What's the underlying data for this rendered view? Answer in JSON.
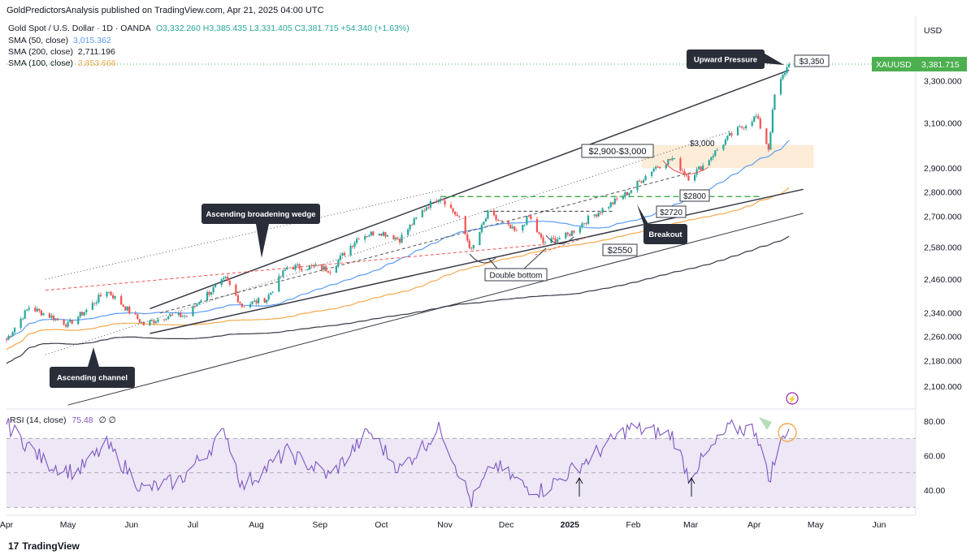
{
  "header": {
    "published": "GoldPredictorsAnalysis published on TradingView.com, Apr 21, 2025 04:00 UTC"
  },
  "legend": {
    "symbol_line": "Gold Spot / U.S. Dollar · 1D · OANDA",
    "ohlc": "O3,332.260 H3,385.435 L3,331.405 C3,381.715 +54.340 (+1.63%)",
    "sma50_label": "SMA (50, close)",
    "sma50_value": "3,015.362",
    "sma200_label": "SMA (200, close)",
    "sma200_value": "2,711.196",
    "sma100_label": "SMA (100, close)",
    "sma100_value": "2,853.666"
  },
  "price_axis": {
    "currency": "USD",
    "ticker_tag": "XAUUSD",
    "last_price": "3,381.715"
  },
  "rsi": {
    "label": "RSI (14, close)",
    "value": "75.48",
    "extra": "∅ ∅"
  },
  "footer": {
    "brand": "TradingView"
  },
  "colors": {
    "up": "#26a69a",
    "down": "#ef5350",
    "sma50": "#5b9cf6",
    "sma100": "#f6a94c",
    "sma200": "#363a45",
    "rsi_line": "#7e57c2",
    "rsi_band": "#ede7f6",
    "green_tag": "#4caf50",
    "zone": "#fbe4c8",
    "callout": "#2a2e39",
    "dashed_green": "#4caf50"
  },
  "chart_data": {
    "type": "candlestick",
    "title": "Gold Spot / U.S. Dollar · 1D · OANDA",
    "x_tick_labels": [
      "Apr",
      "May",
      "Jun",
      "Jul",
      "Aug",
      "Sep",
      "Oct",
      "Nov",
      "Dec",
      "2025",
      "Feb",
      "Mar",
      "Apr",
      "May",
      "Jun"
    ],
    "y_tick_labels": [
      "3,300.000",
      "3,100.000",
      "2,900.000",
      "2,800.000",
      "2,700.000",
      "2,580.000",
      "2,460.000",
      "2,340.000",
      "2,260.000",
      "2,180.000",
      "2,100.000"
    ],
    "y_ticks": [
      3300,
      3100,
      2900,
      2800,
      2700,
      2580,
      2460,
      2340,
      2260,
      2180,
      2100
    ],
    "ylim": [
      2040,
      3460
    ],
    "scale": "log",
    "close_path": [
      [
        "2024-04-01",
        2250
      ],
      [
        "2024-04-12",
        2360
      ],
      [
        "2024-04-22",
        2330
      ],
      [
        "2024-05-01",
        2300
      ],
      [
        "2024-05-10",
        2350
      ],
      [
        "2024-05-20",
        2420
      ],
      [
        "2024-05-31",
        2345
      ],
      [
        "2024-06-07",
        2300
      ],
      [
        "2024-06-18",
        2330
      ],
      [
        "2024-06-28",
        2330
      ],
      [
        "2024-07-05",
        2390
      ],
      [
        "2024-07-17",
        2460
      ],
      [
        "2024-07-25",
        2365
      ],
      [
        "2024-08-06",
        2390
      ],
      [
        "2024-08-16",
        2505
      ],
      [
        "2024-08-30",
        2505
      ],
      [
        "2024-09-06",
        2495
      ],
      [
        "2024-09-20",
        2620
      ],
      [
        "2024-09-30",
        2640
      ],
      [
        "2024-10-10",
        2610
      ],
      [
        "2024-10-23",
        2740
      ],
      [
        "2024-10-30",
        2780
      ],
      [
        "2024-11-08",
        2690
      ],
      [
        "2024-11-14",
        2565
      ],
      [
        "2024-11-22",
        2710
      ],
      [
        "2024-12-06",
        2635
      ],
      [
        "2024-12-12",
        2700
      ],
      [
        "2024-12-19",
        2595
      ],
      [
        "2024-12-31",
        2625
      ],
      [
        "2025-01-10",
        2690
      ],
      [
        "2025-01-22",
        2755
      ],
      [
        "2025-01-30",
        2800
      ],
      [
        "2025-02-11",
        2900
      ],
      [
        "2025-02-20",
        2940
      ],
      [
        "2025-02-28",
        2860
      ],
      [
        "2025-03-07",
        2910
      ],
      [
        "2025-03-20",
        3040
      ],
      [
        "2025-04-02",
        3130
      ],
      [
        "2025-04-08",
        2985
      ],
      [
        "2025-04-11",
        3230
      ],
      [
        "2025-04-16",
        3345
      ],
      [
        "2025-04-18",
        3381.715
      ]
    ],
    "sma": [
      {
        "name": "SMA (50, close)",
        "value": 3015.362
      },
      {
        "name": "SMA (200, close)",
        "value": 2711.196
      },
      {
        "name": "SMA (100, close)",
        "value": 2853.666
      }
    ],
    "rsi": {
      "label": "RSI (14, close)",
      "value": 75.48,
      "levels": [
        70,
        50,
        30
      ],
      "y_tick_labels": [
        "80.00",
        "60.00",
        "40.00"
      ],
      "path": [
        [
          "2024-04-01",
          78
        ],
        [
          "2024-04-20",
          56
        ],
        [
          "2024-05-05",
          50
        ],
        [
          "2024-05-20",
          66
        ],
        [
          "2024-06-07",
          40
        ],
        [
          "2024-06-25",
          46
        ],
        [
          "2024-07-17",
          74
        ],
        [
          "2024-07-25",
          42
        ],
        [
          "2024-08-16",
          62
        ],
        [
          "2024-09-06",
          48
        ],
        [
          "2024-09-25",
          74
        ],
        [
          "2024-10-10",
          52
        ],
        [
          "2024-10-30",
          76
        ],
        [
          "2024-11-14",
          33
        ],
        [
          "2024-11-25",
          55
        ],
        [
          "2024-12-10",
          42
        ],
        [
          "2024-12-19",
          40
        ],
        [
          "2025-01-10",
          58
        ],
        [
          "2025-01-30",
          76
        ],
        [
          "2025-02-20",
          72
        ],
        [
          "2025-02-28",
          48
        ],
        [
          "2025-03-20",
          76
        ],
        [
          "2025-04-02",
          75
        ],
        [
          "2025-04-08",
          46
        ],
        [
          "2025-04-16",
          74
        ],
        [
          "2025-04-18",
          75.48
        ]
      ]
    },
    "annotations": [
      "Upward Pressure",
      "$3,350",
      "$2,900-$3,000",
      "$3,000",
      "$2800",
      "$2720",
      "Breakout",
      "$2550",
      "Ascending broadening wedge",
      "Double bottom",
      "Ascending channel"
    ],
    "grid": false,
    "legend_position": "top-left"
  }
}
